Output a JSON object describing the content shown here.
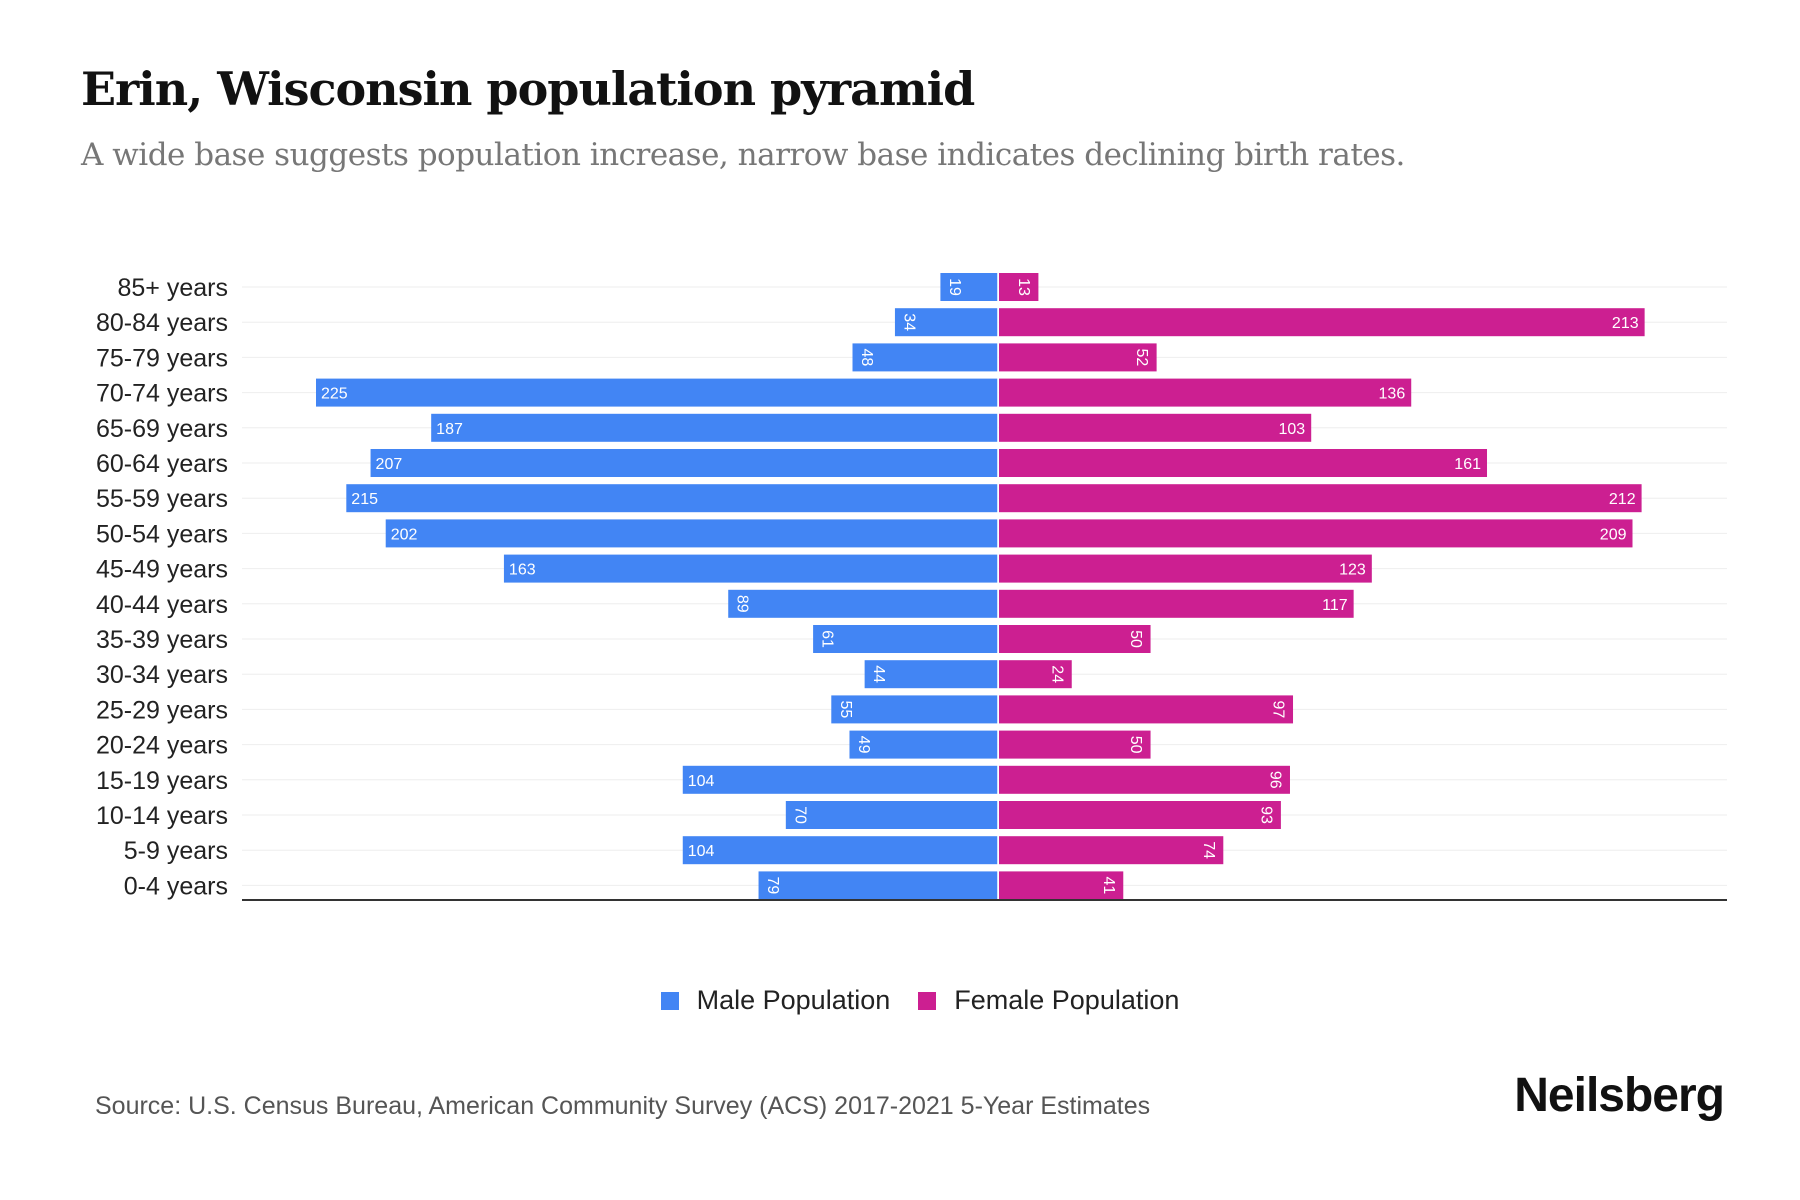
{
  "title": "Erin, Wisconsin population pyramid",
  "subtitle": "A wide base suggests population increase, narrow base indicates declining birth rates.",
  "source": "Source: U.S. Census Bureau, American Community Survey (ACS) 2017-2021 5-Year Estimates",
  "logo": "Neilsberg",
  "colors": {
    "male": "#4285f4",
    "female": "#cc1f91"
  },
  "chart_data": {
    "type": "bar",
    "orientation": "horizontal-pyramid",
    "categories": [
      "85+ years",
      "80-84 years",
      "75-79 years",
      "70-74 years",
      "65-69 years",
      "60-64 years",
      "55-59 years",
      "50-54 years",
      "45-49 years",
      "40-44 years",
      "35-39 years",
      "30-34 years",
      "25-29 years",
      "20-24 years",
      "15-19 years",
      "10-14 years",
      "5-9 years",
      "0-4 years"
    ],
    "series": [
      {
        "name": "Male Population",
        "values": [
          19,
          34,
          48,
          225,
          187,
          207,
          215,
          202,
          163,
          89,
          61,
          44,
          55,
          49,
          104,
          70,
          104,
          79
        ]
      },
      {
        "name": "Female Population",
        "values": [
          13,
          213,
          52,
          136,
          103,
          161,
          212,
          209,
          123,
          117,
          50,
          24,
          97,
          50,
          96,
          93,
          74,
          41
        ]
      }
    ],
    "xlim": [
      -225,
      225
    ],
    "grid": true,
    "legend": "bottom-center"
  }
}
